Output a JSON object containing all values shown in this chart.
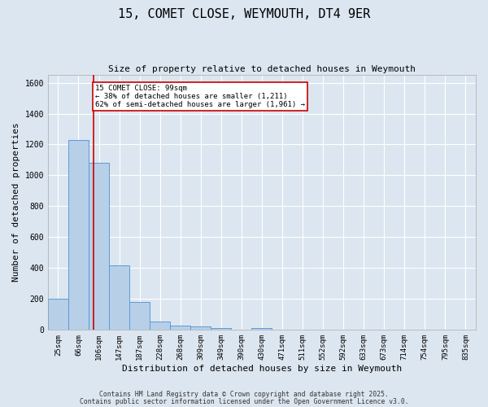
{
  "title": "15, COMET CLOSE, WEYMOUTH, DT4 9ER",
  "subtitle": "Size of property relative to detached houses in Weymouth",
  "xlabel": "Distribution of detached houses by size in Weymouth",
  "ylabel": "Number of detached properties",
  "categories": [
    "25sqm",
    "66sqm",
    "106sqm",
    "147sqm",
    "187sqm",
    "228sqm",
    "268sqm",
    "309sqm",
    "349sqm",
    "390sqm",
    "430sqm",
    "471sqm",
    "511sqm",
    "552sqm",
    "592sqm",
    "633sqm",
    "673sqm",
    "714sqm",
    "754sqm",
    "795sqm",
    "835sqm"
  ],
  "values": [
    200,
    1230,
    1080,
    415,
    180,
    50,
    25,
    18,
    10,
    0,
    8,
    0,
    0,
    0,
    0,
    0,
    0,
    0,
    0,
    0,
    0
  ],
  "bar_color": "#b8cfe8",
  "bar_edge_color": "#5b9bd5",
  "property_line_color": "#cc0000",
  "annotation_text": "15 COMET CLOSE: 99sqm\n← 38% of detached houses are smaller (1,211)\n62% of semi-detached houses are larger (1,961) →",
  "annotation_box_color": "#ffffff",
  "annotation_box_edge": "#cc0000",
  "ylim": [
    0,
    1650
  ],
  "yticks": [
    0,
    200,
    400,
    600,
    800,
    1000,
    1200,
    1400,
    1600
  ],
  "background_color": "#dce6f0",
  "plot_bg_color": "#dce6f0",
  "grid_color": "#ffffff",
  "footer_line1": "Contains HM Land Registry data © Crown copyright and database right 2025.",
  "footer_line2": "Contains public sector information licensed under the Open Government Licence v3.0."
}
